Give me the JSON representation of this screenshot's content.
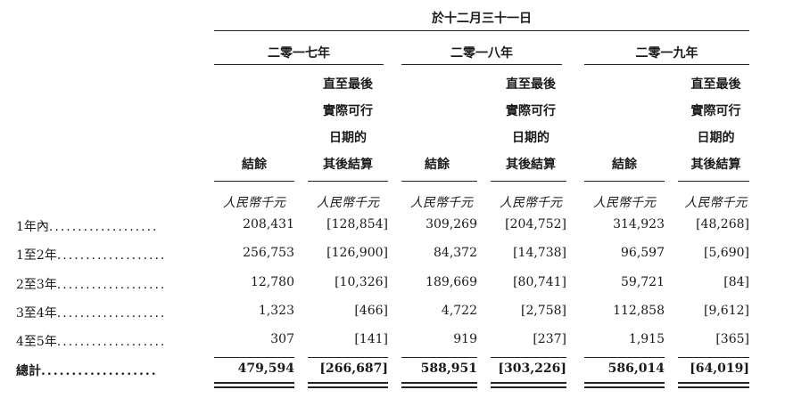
{
  "header": {
    "top": "於十二月三十一日",
    "years": [
      "二零一七年",
      "二零一八年",
      "二零一九年"
    ]
  },
  "columns": {
    "balance": "結餘",
    "subsequent_lines": [
      "直至最後",
      "實際可行",
      "日期的",
      "其後結算"
    ],
    "unit": "人民幣千元"
  },
  "rows": [
    {
      "label": "1年內",
      "dots": "...................",
      "values": [
        "208,431",
        "[128,854]",
        "309,269",
        "[204,752]",
        "314,923",
        "[48,268]"
      ]
    },
    {
      "label": "1至2年",
      "dots": "...................",
      "values": [
        "256,753",
        "[126,900]",
        "84,372",
        "[14,738]",
        "96,597",
        "[5,690]"
      ]
    },
    {
      "label": "2至3年",
      "dots": "...................",
      "values": [
        "12,780",
        "[10,326]",
        "189,669",
        "[80,741]",
        "59,721",
        "[84]"
      ]
    },
    {
      "label": "3至4年",
      "dots": "...................",
      "values": [
        "1,323",
        "[466]",
        "4,722",
        "[2,758]",
        "112,858",
        "[9,612]"
      ]
    },
    {
      "label": "4至5年",
      "dots": "...................",
      "values": [
        "307",
        "[141]",
        "919",
        "[237]",
        "1,915",
        "[365]"
      ]
    }
  ],
  "total": {
    "label": "總計",
    "dots": "...................",
    "values": [
      "479,594",
      "[266,687]",
      "588,951",
      "[303,226]",
      "586,014",
      "[64,019]"
    ]
  }
}
